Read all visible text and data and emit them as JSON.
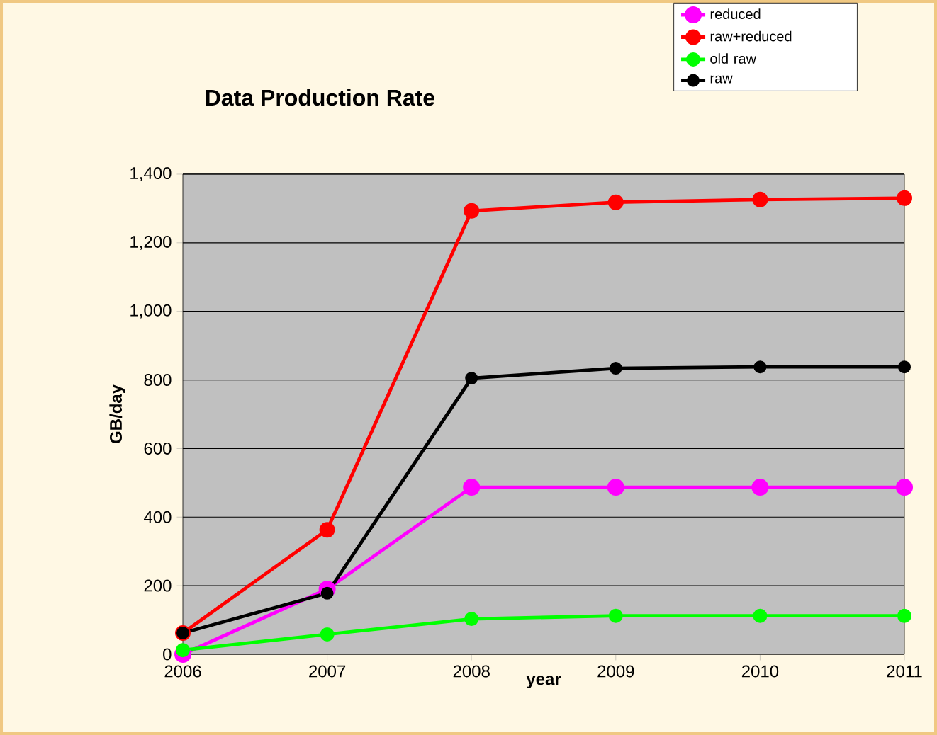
{
  "chart_data": {
    "type": "line",
    "title": "Data Production Rate",
    "xlabel": "year",
    "ylabel": "GB/day",
    "x": [
      2006,
      2007,
      2008,
      2009,
      2010,
      2011
    ],
    "series": [
      {
        "name": "reduced",
        "color": "#ff00ff",
        "values": [
          0,
          190,
          487,
          487,
          487,
          487
        ]
      },
      {
        "name": "raw+reduced",
        "color": "#ff0000",
        "values": [
          62,
          363,
          1293,
          1318,
          1326,
          1330
        ]
      },
      {
        "name": "old raw",
        "color": "#00ff00",
        "values": [
          12,
          58,
          103,
          112,
          112,
          112
        ]
      },
      {
        "name": "raw",
        "color": "#000000",
        "values": [
          62,
          178,
          805,
          834,
          838,
          838
        ]
      }
    ],
    "xlim": [
      2006,
      2011
    ],
    "ylim": [
      0,
      1400
    ],
    "xticks": [
      2006,
      2007,
      2008,
      2009,
      2010,
      2011
    ],
    "yticks": [
      {
        "value": 0,
        "label": "0"
      },
      {
        "value": 200,
        "label": "200"
      },
      {
        "value": 400,
        "label": "400"
      },
      {
        "value": 600,
        "label": "600"
      },
      {
        "value": 800,
        "label": "800"
      },
      {
        "value": 1000,
        "label": "1,000"
      },
      {
        "value": 1200,
        "label": "1,200"
      },
      {
        "value": 1400,
        "label": "1,400"
      }
    ],
    "grid": "y",
    "legend": "top right",
    "marker": "circle",
    "line_style": "solid"
  }
}
